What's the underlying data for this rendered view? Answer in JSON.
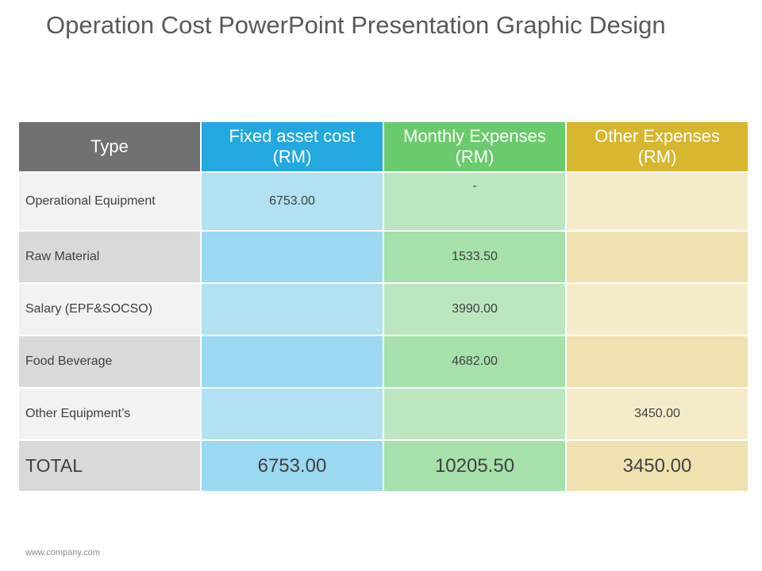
{
  "slide": {
    "title": "Operation Cost PowerPoint Presentation Graphic Design",
    "footer_url": "www.company.com"
  },
  "colors": {
    "type_header": "#717171",
    "fixed_header": "#23a8df",
    "monthly_header": "#6acb6c",
    "other_header": "#d7b630",
    "type_light": "#f2f2f2",
    "type_dark": "#d9d9d9",
    "fixed_light": "#b2e1f1",
    "fixed_dark": "#9bd8f1",
    "monthly_light": "#bce6c0",
    "monthly_dark": "#a6e0ab",
    "other_light": "#f6ebc9",
    "other_dark": "#f0e2b0"
  },
  "table": {
    "headers": {
      "type": "Type",
      "fixed_asset": "Fixed asset cost\n(RM)",
      "monthly": "Monthly Expenses\n(RM)",
      "other": "Other Expenses\n(RM)"
    },
    "rows": [
      {
        "type": "Operational Equipment",
        "fixed_asset": "6753.00",
        "monthly": "-",
        "other": ""
      },
      {
        "type": "Raw Material",
        "fixed_asset": "",
        "monthly": "1533.50",
        "other": ""
      },
      {
        "type": "Salary (EPF&SOCSO)",
        "fixed_asset": "",
        "monthly": "3990.00",
        "other": ""
      },
      {
        "type": "Food Beverage",
        "fixed_asset": "",
        "monthly": "4682.00",
        "other": ""
      },
      {
        "type": "Other Equipment’s",
        "fixed_asset": "",
        "monthly": "",
        "other": "3450.00"
      }
    ],
    "total": {
      "type": "TOTAL",
      "fixed_asset": "6753.00",
      "monthly": "10205.50",
      "other": "3450.00"
    }
  }
}
